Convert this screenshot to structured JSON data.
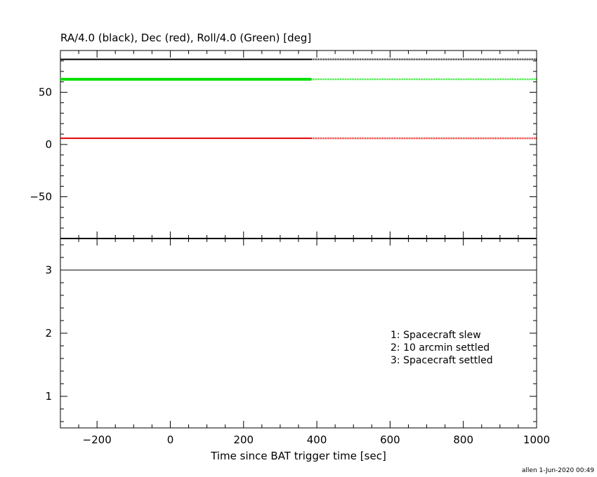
{
  "chart_data": [
    {
      "type": "line",
      "title": "RA/4.0 (black), Dec (red), Roll/4.0 (Green) [deg]",
      "xlim": [
        -300,
        1000
      ],
      "ylim": [
        -90,
        90
      ],
      "y_ticks": [
        -50,
        0,
        50
      ],
      "y_tick_labels": [
        "−50",
        "0",
        "50"
      ],
      "series": [
        {
          "color": "#000000",
          "segments": [
            {
              "x": [
                -300,
                385
              ],
              "y": [
                81.5,
                81.5
              ],
              "style": "solid"
            },
            {
              "x": [
                385,
                1000
              ],
              "y": [
                81.5,
                81.5
              ],
              "style": "dotted"
            }
          ]
        },
        {
          "color": "#00e000",
          "segments": [
            {
              "x": [
                -300,
                385
              ],
              "y": [
                62.5,
                62.5
              ],
              "style": "solid"
            },
            {
              "x": [
                385,
                1000
              ],
              "y": [
                62.5,
                62.5
              ],
              "style": "dotted"
            }
          ]
        },
        {
          "color": "#e00000",
          "segments": [
            {
              "x": [
                -300,
                385
              ],
              "y": [
                6,
                6
              ],
              "style": "solid"
            },
            {
              "x": [
                385,
                1000
              ],
              "y": [
                6,
                6
              ],
              "style": "dotted"
            }
          ]
        }
      ]
    },
    {
      "type": "line",
      "xlabel": "Time since BAT trigger time [sec]",
      "xlim": [
        -300,
        1000
      ],
      "ylim": [
        0.5,
        3.5
      ],
      "x_ticks": [
        -200,
        0,
        200,
        400,
        600,
        800,
        1000
      ],
      "x_tick_labels": [
        "−200",
        "0",
        "200",
        "400",
        "600",
        "800",
        "1000"
      ],
      "y_ticks": [
        1,
        2,
        3
      ],
      "y_tick_labels": [
        "1",
        "2",
        "3"
      ],
      "series": [
        {
          "color": "#000000",
          "segments": [
            {
              "x": [
                -300,
                1000
              ],
              "y": [
                3,
                3
              ],
              "style": "solid"
            }
          ]
        }
      ],
      "annotations": [
        "1: Spacecraft slew",
        "2: 10 arcmin settled",
        "3: Spacecraft settled"
      ]
    }
  ],
  "footer": "allen  1-Jun-2020 00:49"
}
